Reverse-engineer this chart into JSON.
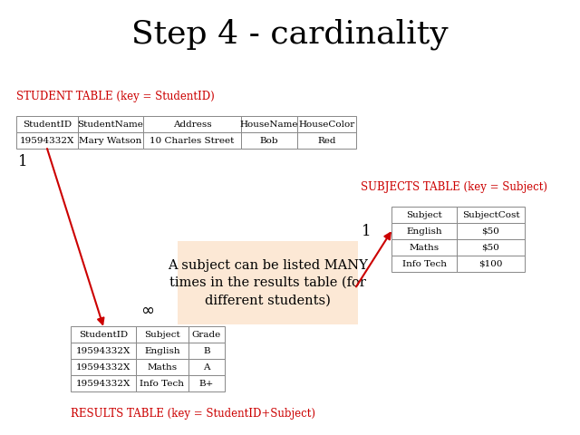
{
  "title": "Step 4 - cardinality",
  "title_fontsize": 26,
  "bg_color": "#ffffff",
  "student_table_label": "STUDENT TABLE (key = StudentID)",
  "student_headers": [
    "StudentID",
    "StudentName",
    "Address",
    "HouseName",
    "HouseColor"
  ],
  "student_data": [
    [
      "19594332X",
      "Mary Watson",
      "10 Charles Street",
      "Bob",
      "Red"
    ]
  ],
  "subjects_table_label": "SUBJECTS TABLE (key = Subject)",
  "subjects_headers": [
    "Subject",
    "SubjectCost"
  ],
  "subjects_data": [
    [
      "English",
      "$50"
    ],
    [
      "Maths",
      "$50"
    ],
    [
      "Info Tech",
      "$100"
    ]
  ],
  "results_table_label": "RESULTS TABLE (key = StudentID+Subject)",
  "results_headers": [
    "StudentID",
    "Subject",
    "Grade"
  ],
  "results_data": [
    [
      "19594332X",
      "English",
      "B"
    ],
    [
      "19594332X",
      "Maths",
      "A"
    ],
    [
      "19594332X",
      "Info Tech",
      "B+"
    ]
  ],
  "annotation_text": "A subject can be listed MANY\ntimes in the results table (for\ndifferent students)",
  "label_color": "#cc0000",
  "arrow_color": "#cc0000",
  "table_edge_color": "#888888",
  "annotation_bg_color": "#fce8d5",
  "label_fontsize": 8.5,
  "table_fontsize": 7.5,
  "annotation_fontsize": 10.5,
  "one_fontsize": 12
}
